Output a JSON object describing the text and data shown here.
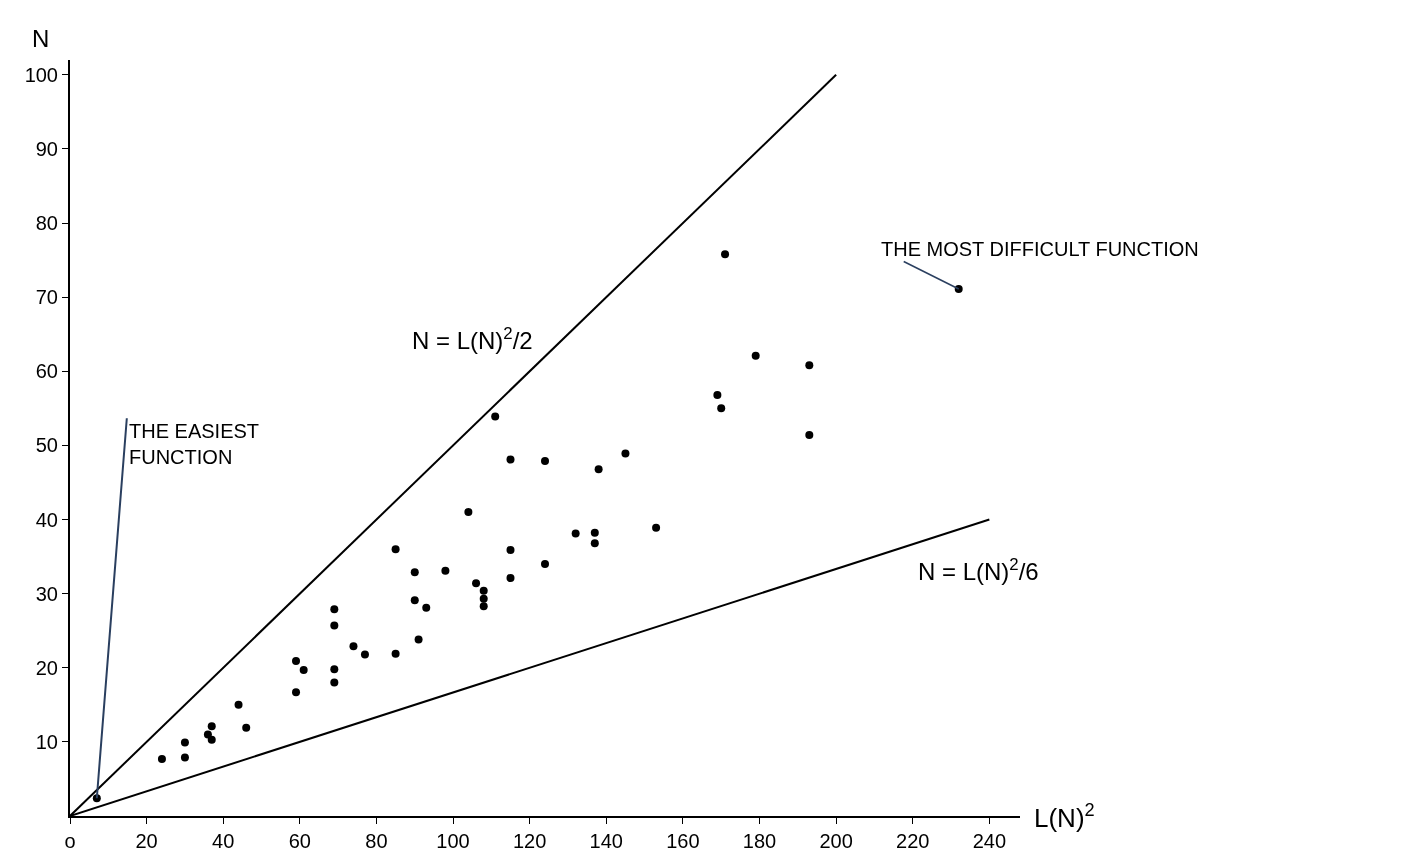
{
  "chart_data": {
    "type": "scatter",
    "xlabel": "L(N)$^{2}$",
    "ylabel": "N",
    "xlim": [
      0,
      248
    ],
    "ylim": [
      0,
      102
    ],
    "xticks": [
      {
        "value": 0,
        "label": "o"
      },
      20,
      40,
      60,
      80,
      100,
      120,
      140,
      160,
      180,
      200,
      220,
      240
    ],
    "yticks": [
      10,
      20,
      30,
      40,
      50,
      60,
      70,
      80,
      90,
      100
    ],
    "series": [
      {
        "marker": "circle",
        "color": "#000000",
        "x": [
          7,
          24,
          30,
          30,
          36,
          37,
          37,
          44,
          46,
          59,
          61,
          59,
          69,
          69,
          69,
          69,
          74,
          77,
          111,
          115,
          104,
          85,
          115,
          90,
          98,
          106,
          108,
          108,
          108,
          115,
          90,
          93,
          85,
          91,
          124,
          138,
          145,
          132,
          137,
          137,
          153,
          124,
          171,
          179,
          193,
          169,
          170,
          193,
          232
        ],
        "values": [
          2.4,
          7.7,
          9.9,
          7.9,
          11.0,
          12.1,
          10.3,
          15.0,
          11.9,
          20.9,
          19.7,
          16.7,
          27.9,
          25.7,
          19.8,
          18.0,
          22.9,
          21.8,
          53.9,
          48.1,
          41.0,
          36.0,
          35.9,
          32.9,
          33.1,
          31.4,
          30.4,
          29.3,
          28.3,
          32.1,
          29.1,
          28.1,
          21.9,
          23.8,
          47.9,
          46.8,
          48.9,
          38.1,
          38.2,
          36.8,
          38.9,
          34.0,
          75.8,
          62.1,
          60.8,
          56.8,
          55.0,
          51.4,
          71.1
        ]
      },
      {
        "type": "line",
        "name": "N = L(N)$^{2}$/2",
        "color": "#000000",
        "line_style": "solid",
        "x": [
          0,
          200
        ],
        "values": [
          0,
          100
        ]
      },
      {
        "type": "line",
        "name": "N = L(N)$^{2}$/6",
        "color": "#000000",
        "line_style": "solid",
        "x": [
          0,
          240
        ],
        "values": [
          0,
          40
        ]
      }
    ],
    "annotations": [
      {
        "text": "THE EASIEST FUNCTION",
        "x": 7,
        "y": 2.4
      },
      {
        "text": "THE MOST DIFFICULT FUNCTION",
        "x": 232,
        "y": 71.1
      }
    ]
  }
}
